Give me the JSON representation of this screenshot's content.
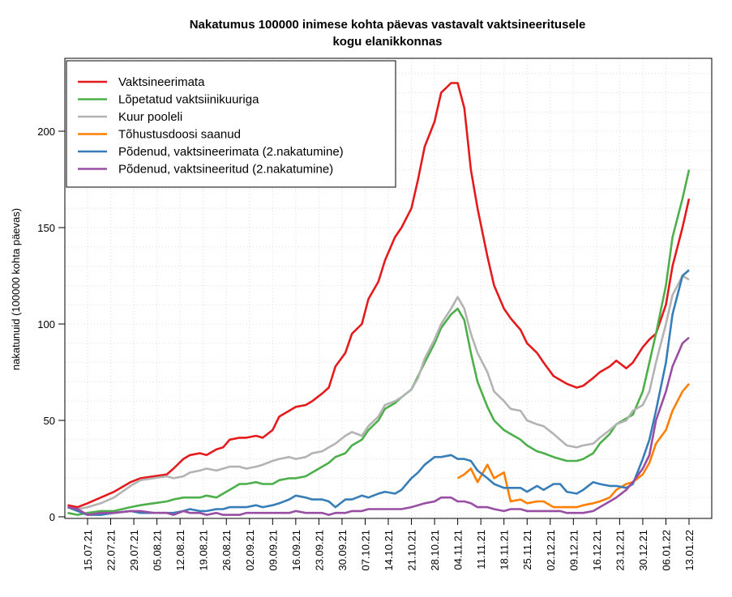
{
  "chart_data": {
    "type": "line",
    "title": [
      "Nakatumus 100000 inimese kohta päevas vastavalt vaktsineeritusele",
      "kogu elanikkonnas"
    ],
    "xlabel": "",
    "ylabel": "nakatunuid (100000 kohta päevas)",
    "ylim": [
      0,
      230
    ],
    "yticks": [
      0,
      50,
      100,
      150,
      200
    ],
    "grid": true,
    "legend_position": "top-left",
    "x_tick_labels": [
      "15.07.21",
      "22.07.21",
      "29.07.21",
      "05.08.21",
      "12.08.21",
      "19.08.21",
      "26.08.21",
      "02.09.21",
      "09.09.21",
      "16.09.21",
      "23.09.21",
      "30.09.21",
      "07.10.21",
      "14.10.21",
      "21.10.21",
      "28.10.21",
      "04.11.21",
      "11.11.21",
      "18.11.21",
      "25.11.21",
      "02.12.21",
      "09.12.21",
      "16.12.21",
      "23.12.21",
      "30.12.21",
      "06.01.22",
      "13.01.22"
    ],
    "x_days_since_15_07_21": [
      -6,
      -3,
      0,
      4,
      8,
      13,
      16,
      20,
      24,
      26,
      29,
      31,
      34,
      36,
      39,
      41,
      43,
      46,
      48,
      51,
      53,
      56,
      58,
      61,
      63,
      66,
      68,
      71,
      73,
      75,
      78,
      80,
      83,
      85,
      88,
      90,
      93,
      95,
      98,
      100,
      102,
      105,
      107,
      110,
      112,
      114,
      116,
      118,
      121,
      123,
      126,
      128,
      131,
      133,
      136,
      138,
      141,
      143,
      145,
      148,
      150,
      153,
      155,
      158,
      160,
      163,
      165,
      168,
      170,
      172,
      175,
      177,
      180,
      182
    ],
    "series": [
      {
        "name": "Vaktsineerimata",
        "color": "#e41a1c",
        "values": [
          6,
          5,
          7,
          10,
          13,
          18,
          20,
          21,
          22,
          25,
          30,
          32,
          33,
          32,
          35,
          36,
          40,
          41,
          41,
          42,
          41,
          45,
          52,
          55,
          57,
          58,
          60,
          64,
          67,
          78,
          85,
          95,
          100,
          113,
          122,
          133,
          145,
          150,
          160,
          175,
          192,
          205,
          220,
          225,
          225,
          212,
          180,
          160,
          135,
          120,
          108,
          103,
          97,
          90,
          85,
          80,
          73,
          71,
          69,
          67,
          68,
          72,
          75,
          78,
          81,
          77,
          80,
          88,
          92,
          95,
          110,
          130,
          150,
          165
        ]
      },
      {
        "name": "Lõpetatud vaktsiinikuuriga",
        "color": "#4daf4a",
        "values": [
          2,
          1,
          2,
          3,
          3,
          5,
          6,
          7,
          8,
          9,
          10,
          10,
          10,
          11,
          10,
          12,
          14,
          17,
          17,
          18,
          17,
          17,
          19,
          20,
          20,
          21,
          23,
          26,
          28,
          31,
          33,
          37,
          40,
          45,
          50,
          56,
          59,
          62,
          66,
          73,
          80,
          90,
          98,
          105,
          108,
          102,
          85,
          70,
          57,
          50,
          45,
          43,
          40,
          37,
          34,
          33,
          31,
          30,
          29,
          29,
          30,
          33,
          38,
          43,
          48,
          51,
          53,
          65,
          80,
          95,
          120,
          145,
          165,
          180
        ]
      },
      {
        "name": "Kuur pooleli",
        "color": "#b3b3b3",
        "values": [
          5,
          4,
          5,
          7,
          10,
          16,
          19,
          20,
          21,
          20,
          21,
          23,
          24,
          25,
          24,
          25,
          26,
          26,
          25,
          26,
          27,
          29,
          30,
          31,
          30,
          31,
          33,
          34,
          36,
          38,
          42,
          44,
          42,
          47,
          52,
          58,
          60,
          62,
          66,
          72,
          82,
          92,
          100,
          108,
          114,
          108,
          95,
          85,
          75,
          65,
          60,
          56,
          55,
          50,
          48,
          47,
          43,
          40,
          37,
          36,
          37,
          38,
          41,
          45,
          48,
          50,
          55,
          58,
          65,
          80,
          100,
          115,
          125,
          123
        ]
      },
      {
        "name": "Tõhustusdoosi saanud",
        "color": "#ff7f00",
        "values": [
          null,
          null,
          null,
          null,
          null,
          null,
          null,
          null,
          null,
          null,
          null,
          null,
          null,
          null,
          null,
          null,
          null,
          null,
          null,
          null,
          null,
          null,
          null,
          null,
          null,
          null,
          null,
          null,
          null,
          null,
          null,
          null,
          null,
          null,
          null,
          null,
          null,
          null,
          null,
          null,
          null,
          null,
          null,
          null,
          20,
          22,
          25,
          18,
          27,
          20,
          23,
          8,
          9,
          7,
          8,
          8,
          5,
          5,
          5,
          5,
          6,
          7,
          8,
          10,
          14,
          17,
          18,
          22,
          28,
          38,
          45,
          55,
          65,
          69
        ]
      },
      {
        "name": "Põdenud, vaktsineerimata (2.nakatumine)",
        "color": "#377eb8",
        "values": [
          5,
          3,
          1,
          1,
          2,
          3,
          2,
          2,
          2,
          2,
          3,
          4,
          3,
          3,
          4,
          4,
          5,
          5,
          5,
          6,
          5,
          6,
          7,
          9,
          11,
          10,
          9,
          9,
          8,
          5,
          9,
          9,
          11,
          10,
          12,
          13,
          12,
          14,
          20,
          23,
          27,
          31,
          31,
          32,
          30,
          30,
          29,
          24,
          20,
          17,
          15,
          15,
          15,
          13,
          16,
          14,
          17,
          17,
          13,
          12,
          14,
          18,
          17,
          16,
          16,
          15,
          17,
          30,
          40,
          55,
          80,
          105,
          125,
          128
        ]
      },
      {
        "name": "Põdenud, vaktsineeritud (2.nakatumine)",
        "color": "#984ea3",
        "values": [
          5,
          4,
          1,
          2,
          2,
          3,
          3,
          2,
          2,
          1,
          3,
          2,
          2,
          1,
          2,
          1,
          1,
          1,
          2,
          2,
          2,
          2,
          2,
          2,
          3,
          2,
          2,
          2,
          1,
          2,
          2,
          3,
          3,
          4,
          4,
          4,
          4,
          4,
          5,
          6,
          7,
          8,
          10,
          10,
          8,
          8,
          7,
          5,
          5,
          4,
          3,
          4,
          4,
          3,
          3,
          3,
          3,
          3,
          2,
          2,
          2,
          3,
          5,
          8,
          10,
          14,
          18,
          25,
          32,
          50,
          65,
          78,
          90,
          93
        ]
      }
    ]
  }
}
